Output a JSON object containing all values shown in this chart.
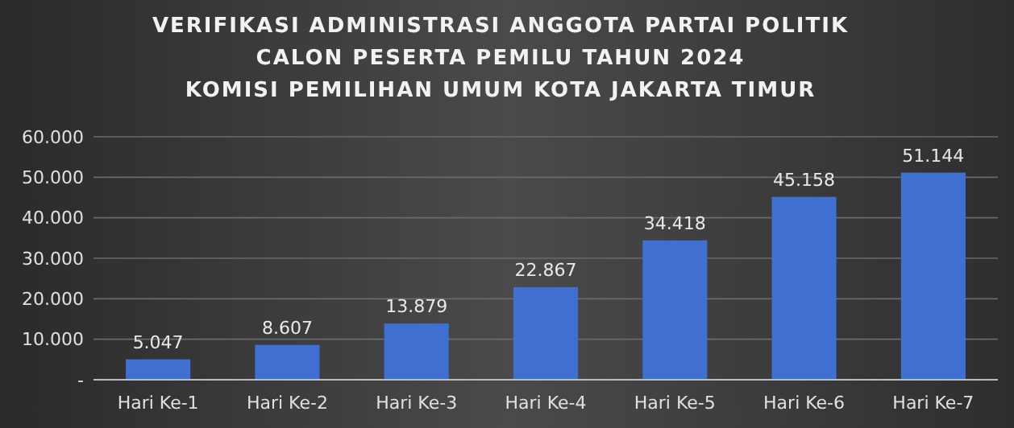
{
  "chart_data": {
    "type": "bar",
    "title": "VERIFIKASI ADMINISTRASI ANGGOTA PARTAI POLITIK\nCALON PESERTA PEMILU TAHUN 2024\nKOMISI PEMILIHAN UMUM KOTA JAKARTA TIMUR",
    "categories": [
      "Hari Ke-1",
      "Hari Ke-2",
      "Hari Ke-3",
      "Hari Ke-4",
      "Hari Ke-5",
      "Hari Ke-6",
      "Hari Ke-7"
    ],
    "values": [
      5047,
      8607,
      13879,
      22867,
      34418,
      45158,
      51144
    ],
    "value_labels": [
      "5.047",
      "8.607",
      "13.879",
      "22.867",
      "34.418",
      "45.158",
      "51.144"
    ],
    "color": "#3f6fd0",
    "ylim": [
      0,
      60000
    ],
    "yticks": [
      {
        "value": 0,
        "label": "-"
      },
      {
        "value": 10000,
        "label": "10.000"
      },
      {
        "value": 20000,
        "label": "20.000"
      },
      {
        "value": 30000,
        "label": "30.000"
      },
      {
        "value": 40000,
        "label": "40.000"
      },
      {
        "value": 50000,
        "label": "50.000"
      },
      {
        "value": 60000,
        "label": "60.000"
      }
    ],
    "grid": "y"
  }
}
